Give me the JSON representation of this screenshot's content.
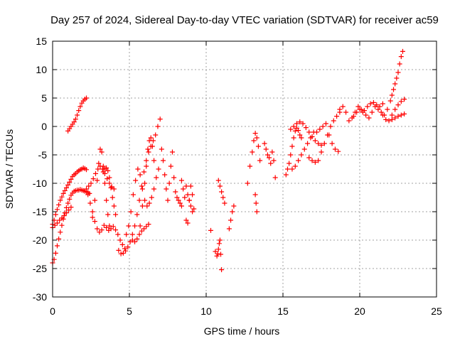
{
  "chart_data": {
    "type": "scatter",
    "title": "Day 257 of 2024, Sidereal Day-to-day VTEC variation (SDTVAR) for receiver ac59",
    "xlabel": "GPS time / hours",
    "ylabel": "SDTVAR / TECUs",
    "xlim": [
      0,
      25
    ],
    "ylim": [
      -30,
      15
    ],
    "xticks": [
      0,
      5,
      10,
      15,
      20,
      25
    ],
    "yticks": [
      -30,
      -25,
      -20,
      -15,
      -10,
      -5,
      0,
      5,
      10,
      15
    ],
    "grid": true,
    "marker": "+",
    "color": "#ff0000",
    "series": [
      {
        "name": "s1",
        "x": [
          0.0,
          0.1,
          0.2,
          0.3,
          0.4,
          0.5,
          0.6,
          0.7,
          0.8,
          0.9,
          1.0,
          1.1,
          1.2,
          1.3,
          1.4,
          1.5,
          1.6,
          1.7,
          1.8,
          1.9,
          2.0,
          2.1,
          2.2
        ],
        "y": [
          -17.2,
          -16.5,
          -15.5,
          -14.6,
          -13.8,
          -13.0,
          -12.4,
          -11.8,
          -11.3,
          -10.8,
          -10.3,
          -9.8,
          -9.3,
          -8.8,
          -8.5,
          -8.3,
          -8.0,
          -7.8,
          -7.6,
          -7.5,
          -7.3,
          -7.4,
          -7.6
        ]
      },
      {
        "name": "s2",
        "x": [
          0.0,
          0.1,
          0.2,
          0.3,
          0.4,
          0.5,
          0.6,
          0.7,
          0.8,
          0.9,
          1.0,
          1.1,
          1.2,
          1.3,
          1.4,
          1.5,
          1.6,
          1.7,
          1.8,
          1.9,
          2.0,
          2.1,
          2.2,
          2.3,
          2.4
        ],
        "y": [
          -24.0,
          -23.4,
          -22.3,
          -21.0,
          -19.8,
          -18.6,
          -17.4,
          -16.3,
          -15.2,
          -14.3,
          -13.5,
          -12.8,
          -12.1,
          -11.7,
          -11.4,
          -11.3,
          -11.2,
          -11.2,
          -11.1,
          -11.2,
          -11.3,
          -11.4,
          -11.5,
          -11.6,
          -11.8
        ]
      },
      {
        "name": "s3",
        "x": [
          0.0,
          0.15,
          0.3,
          0.45,
          0.6,
          0.75,
          0.9,
          1.05,
          1.2
        ],
        "y": [
          -17.8,
          -17.4,
          -17.0,
          -16.5,
          -16.1,
          -15.7,
          -15.2,
          -14.7,
          -14.2
        ]
      },
      {
        "name": "s4",
        "x": [
          1.0,
          1.1,
          1.2,
          1.3,
          1.4,
          1.5,
          1.6,
          1.7,
          1.8,
          1.9,
          2.0,
          2.1,
          2.2
        ],
        "y": [
          -0.8,
          -0.4,
          0.0,
          0.4,
          0.8,
          1.3,
          2.0,
          2.8,
          3.5,
          4.1,
          4.5,
          4.8,
          5.0
        ]
      },
      {
        "name": "s5",
        "x": [
          2.2,
          2.35,
          2.5,
          2.65,
          2.8,
          2.95,
          3.1,
          3.25,
          3.4,
          3.55,
          3.7,
          3.85,
          4.0
        ],
        "y": [
          -11.0,
          -10.5,
          -10.0,
          -9.2,
          -8.3,
          -7.5,
          -7.0,
          -7.5,
          -8.3,
          -9.2,
          -10.0,
          -10.6,
          -11.0
        ]
      },
      {
        "name": "s6",
        "x": [
          2.3,
          2.45,
          2.6,
          2.75,
          2.9,
          3.05,
          3.2,
          3.35,
          3.5,
          3.65,
          3.8,
          3.95,
          4.1,
          4.25,
          4.4,
          4.55,
          4.7
        ],
        "y": [
          -12.0,
          -13.5,
          -15.0,
          -16.7,
          -18.0,
          -18.6,
          -18.2,
          -17.4,
          -17.8,
          -18.3,
          -18.0,
          -17.6,
          -18.2,
          -19.0,
          -20.0,
          -20.8,
          -21.5
        ]
      },
      {
        "name": "s7",
        "x": [
          2.6,
          2.75,
          2.9,
          3.0,
          3.1,
          3.2,
          3.3,
          3.4,
          3.5,
          3.6,
          3.7
        ],
        "y": [
          -16.0,
          -13.0,
          -9.5,
          -6.5,
          -4.0,
          -4.5,
          -7.0,
          -10.0,
          -13.0,
          -15.5,
          -17.5
        ]
      },
      {
        "name": "s8",
        "x": [
          3.3,
          3.4,
          3.5,
          3.6,
          3.7,
          3.8,
          3.9,
          4.0,
          4.1
        ],
        "y": [
          -8.0,
          -7.5,
          -7.3,
          -7.8,
          -9.0,
          -10.8,
          -12.5,
          -14.0,
          -15.5
        ]
      },
      {
        "name": "s9",
        "x": [
          4.3,
          4.45,
          4.6,
          4.75,
          4.9,
          5.05,
          5.2,
          5.35,
          5.5,
          5.65,
          5.8,
          5.95,
          6.1,
          6.25,
          6.4,
          6.55,
          6.7,
          6.85,
          7.0
        ],
        "y": [
          -21.8,
          -22.4,
          -22.3,
          -21.9,
          -21.2,
          -20.3,
          -19.0,
          -17.5,
          -15.5,
          -13.0,
          -10.5,
          -8.0,
          -6.0,
          -4.5,
          -3.5,
          -2.5,
          -1.5,
          0.0,
          1.3
        ]
      },
      {
        "name": "s10",
        "x": [
          4.8,
          4.95,
          5.1,
          5.25,
          5.4,
          5.55,
          5.7,
          5.85,
          6.0,
          6.15,
          6.3,
          6.45,
          6.6,
          6.75,
          6.9
        ],
        "y": [
          -19.0,
          -17.5,
          -15.0,
          -12.0,
          -9.5,
          -7.5,
          -8.5,
          -11.0,
          -13.0,
          -14.0,
          -13.5,
          -12.5,
          -11.0,
          -9.0,
          -7.5
        ]
      },
      {
        "name": "s11",
        "x": [
          5.7,
          5.85,
          6.0,
          6.1,
          6.2,
          6.3,
          6.4,
          6.5,
          6.6
        ],
        "y": [
          -17.5,
          -14.0,
          -10.0,
          -7.0,
          -4.0,
          -2.5,
          -2.0,
          -3.5,
          -6.0
        ]
      },
      {
        "name": "s12",
        "x": [
          5.2,
          5.35,
          5.5,
          5.65,
          5.8,
          5.95,
          6.1,
          6.25
        ],
        "y": [
          -20.0,
          -20.3,
          -19.8,
          -19.0,
          -18.4,
          -18.0,
          -17.6,
          -17.2
        ]
      },
      {
        "name": "s13",
        "x": [
          7.1,
          7.2,
          7.3,
          7.4,
          7.5,
          7.6,
          7.7,
          7.8,
          7.9,
          8.0,
          8.1,
          8.2,
          8.3,
          8.4
        ],
        "y": [
          -4.0,
          -6.0,
          -8.5,
          -11.0,
          -13.0,
          -10.0,
          -7.0,
          -4.5,
          -9.0,
          -11.5,
          -12.5,
          -13.0,
          -13.5,
          -14.0
        ]
      },
      {
        "name": "s14",
        "x": [
          8.4,
          8.5,
          8.6,
          8.7,
          8.8,
          8.9,
          9.0,
          9.1,
          9.2
        ],
        "y": [
          -9.5,
          -11.0,
          -12.5,
          -16.5,
          -17.0,
          -13.0,
          -10.5,
          -12.0,
          -14.5
        ]
      },
      {
        "name": "s15",
        "x": [
          8.7,
          8.8,
          8.9,
          9.0,
          9.1
        ],
        "y": [
          -10.5,
          -12.0,
          -13.0,
          -14.0,
          -15.0
        ]
      },
      {
        "name": "s16",
        "x": [
          10.3,
          10.6,
          10.7,
          10.75,
          10.8,
          10.85,
          10.9,
          10.95,
          11.0
        ],
        "y": [
          -18.3,
          -22.0,
          -22.8,
          -22.4,
          -21.6,
          -20.6,
          -20.0,
          -22.5,
          -25.2
        ]
      },
      {
        "name": "s17",
        "x": [
          10.8,
          10.9,
          11.0,
          11.1,
          11.2
        ],
        "y": [
          -9.5,
          -10.5,
          -11.5,
          -12.5,
          -13.5
        ]
      },
      {
        "name": "s18",
        "x": [
          11.5,
          11.6,
          11.7,
          11.8
        ],
        "y": [
          -18.0,
          -16.5,
          -15.0,
          -14.0
        ]
      },
      {
        "name": "s19",
        "x": [
          12.7,
          12.85,
          13.0,
          13.1,
          13.2,
          13.3,
          13.4,
          13.5
        ],
        "y": [
          -10.0,
          -7.0,
          -4.5,
          -2.5,
          -1.2,
          -2.0,
          -3.5,
          -6.0
        ]
      },
      {
        "name": "s20",
        "x": [
          13.8,
          13.9,
          14.0,
          14.1,
          14.2,
          14.3,
          14.4,
          14.5
        ],
        "y": [
          -3.0,
          -4.0,
          -5.0,
          -5.5,
          -6.5,
          -4.5,
          -6.0,
          -9.0
        ]
      },
      {
        "name": "s21",
        "x": [
          13.2,
          13.25,
          13.3
        ],
        "y": [
          -12.0,
          -13.5,
          -15.0
        ]
      },
      {
        "name": "s22",
        "x": [
          15.2,
          15.3,
          15.4,
          15.5,
          15.6,
          15.7,
          15.8,
          15.9,
          16.0,
          16.1,
          16.2
        ],
        "y": [
          -8.5,
          -7.5,
          -6.5,
          -5.0,
          -3.5,
          -2.0,
          -0.8,
          -0.3,
          -0.7,
          -1.5,
          -2.0
        ]
      },
      {
        "name": "s23",
        "x": [
          15.5,
          15.7,
          15.9,
          16.1,
          16.3,
          16.5,
          16.7,
          16.9,
          17.1,
          17.3,
          17.5
        ],
        "y": [
          -0.5,
          0.0,
          0.5,
          0.8,
          0.5,
          -0.2,
          -1.0,
          -1.8,
          -2.5,
          -3.0,
          -3.3
        ]
      },
      {
        "name": "s24",
        "x": [
          15.6,
          15.8,
          16.0,
          16.2,
          16.4,
          16.6,
          16.8,
          17.0
        ],
        "y": [
          -7.5,
          -7.0,
          -6.0,
          -5.0,
          -4.0,
          -3.0,
          -2.0,
          -1.0
        ]
      },
      {
        "name": "s25",
        "x": [
          16.7,
          16.9,
          17.1,
          17.3,
          17.5,
          17.7,
          17.9,
          18.1,
          18.3,
          18.5,
          18.7
        ],
        "y": [
          -5.5,
          -6.0,
          -6.3,
          -6.0,
          -4.5,
          -3.0,
          -1.5,
          0.0,
          1.0,
          1.8,
          2.5
        ]
      },
      {
        "name": "s26",
        "x": [
          17.2,
          17.4,
          17.6,
          17.8,
          18.0,
          18.2,
          18.4,
          18.6
        ],
        "y": [
          -1.0,
          -0.5,
          0.0,
          0.5,
          -1.5,
          -3.0,
          -4.0,
          -4.4
        ]
      },
      {
        "name": "s27",
        "x": [
          18.7,
          18.9,
          19.1,
          19.3,
          19.5,
          19.7,
          19.9,
          20.1,
          20.3,
          20.5,
          20.7,
          20.9,
          21.1,
          21.3,
          21.5
        ],
        "y": [
          3.0,
          3.5,
          2.5,
          1.0,
          1.5,
          2.5,
          3.5,
          3.0,
          2.8,
          3.5,
          4.0,
          4.2,
          3.8,
          3.5,
          4.0
        ]
      },
      {
        "name": "s28",
        "x": [
          19.6,
          19.8,
          20.0,
          20.2,
          20.4,
          20.6,
          20.8,
          21.0,
          21.2,
          21.4,
          21.6
        ],
        "y": [
          1.8,
          2.5,
          3.0,
          2.5,
          2.0,
          1.5,
          2.5,
          3.5,
          3.0,
          2.5,
          2.0
        ]
      },
      {
        "name": "s29",
        "x": [
          21.5,
          21.7,
          21.9,
          22.1,
          22.3,
          22.5,
          22.7,
          22.9
        ],
        "y": [
          2.0,
          1.2,
          1.0,
          1.2,
          1.5,
          1.8,
          2.0,
          2.2
        ]
      },
      {
        "name": "s30",
        "x": [
          21.8,
          22.0,
          22.1,
          22.2,
          22.3,
          22.4,
          22.5,
          22.6,
          22.7,
          22.8
        ],
        "y": [
          3.0,
          4.5,
          5.5,
          6.5,
          7.5,
          8.5,
          9.5,
          11.0,
          12.3,
          13.2
        ]
      },
      {
        "name": "s31",
        "x": [
          22.1,
          22.3,
          22.5,
          22.7,
          22.9
        ],
        "y": [
          2.0,
          3.0,
          3.8,
          4.4,
          4.8
        ]
      }
    ]
  }
}
